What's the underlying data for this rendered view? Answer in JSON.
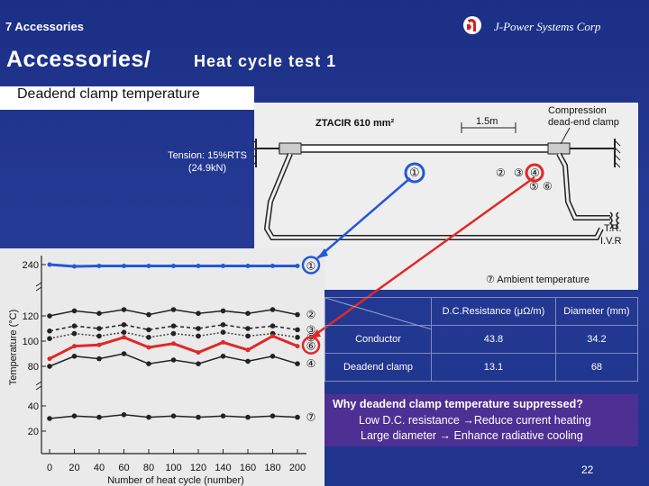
{
  "header": {
    "section_label": "7 Accessories",
    "company": "J-Power Systems Corp",
    "logo_icon": "company-logo-icon"
  },
  "title": {
    "main": "Accessories/",
    "sub": "Heat cycle test 1"
  },
  "subtitle": "Deadend clamp temperature",
  "tension_label": "Tension: 15%RTS (24.9kN)",
  "diagram": {
    "conductor_label": "ZTACIR 610 mm²",
    "span_label": "1.5m",
    "clamp_label_1": "Compression",
    "clamp_label_2": "dead-end clamp",
    "tr_label": "T.R.",
    "ivr_label": "I.V.R",
    "ambient_label": "⑦ Ambient temperature",
    "points": [
      "①",
      "②",
      "③",
      "④",
      "⑤",
      "⑥"
    ]
  },
  "chart_data": {
    "type": "line",
    "xlabel": "Number of heat cycle (number)",
    "ylabel": "Temperature (°C)",
    "x": [
      0,
      20,
      40,
      60,
      80,
      100,
      120,
      140,
      160,
      180,
      200
    ],
    "x_ticks": [
      "0",
      "20",
      "40",
      "60",
      "80",
      "100",
      "120",
      "140",
      "160",
      "180",
      "200"
    ],
    "y_ticks": [
      "240",
      "120",
      "100",
      "80",
      "40",
      "20"
    ],
    "series": [
      {
        "name": "①",
        "values": [
          240,
          236,
          237,
          237,
          237,
          237,
          237,
          237,
          237,
          237,
          237
        ],
        "color": "#2458d6",
        "width": 3
      },
      {
        "name": "②",
        "values": [
          120,
          124,
          122,
          125,
          121,
          125,
          122,
          124,
          122,
          125,
          121
        ],
        "color": "#222222",
        "width": 1.5
      },
      {
        "name": "③",
        "values": [
          108,
          112,
          110,
          113,
          109,
          112,
          110,
          113,
          110,
          112,
          109
        ],
        "color": "#222222",
        "width": 1.5,
        "dash": "4,3"
      },
      {
        "name": "⑤",
        "values": [
          102,
          106,
          104,
          107,
          103,
          106,
          104,
          107,
          104,
          106,
          103
        ],
        "color": "#444444",
        "width": 1.5,
        "dash": "2,2"
      },
      {
        "name": "⑥",
        "values": [
          86,
          96,
          97,
          103,
          95,
          98,
          91,
          99,
          93,
          104,
          96
        ],
        "color": "#e02828",
        "width": 3
      },
      {
        "name": "④",
        "values": [
          80,
          88,
          86,
          90,
          82,
          85,
          82,
          88,
          84,
          88,
          82
        ],
        "color": "#222222",
        "width": 1.5
      },
      {
        "name": "⑦",
        "values": [
          30,
          32,
          31,
          33,
          31,
          32,
          31,
          32,
          31,
          32,
          31
        ],
        "color": "#222222",
        "width": 1.5
      }
    ]
  },
  "table": {
    "headers": [
      "",
      "D.C.Resistance (μΩ/m)",
      "Diameter (mm)"
    ],
    "rows": [
      [
        "Conductor",
        "43.8",
        "34.2"
      ],
      [
        "Deadend clamp",
        "13.1",
        "68"
      ]
    ]
  },
  "note": {
    "heading": "Why deadend clamp temperature suppressed?",
    "line1": "Low D.C. resistance →Reduce current heating",
    "line2": "Large diameter → Enhance radiative cooling"
  },
  "page_number": "22"
}
